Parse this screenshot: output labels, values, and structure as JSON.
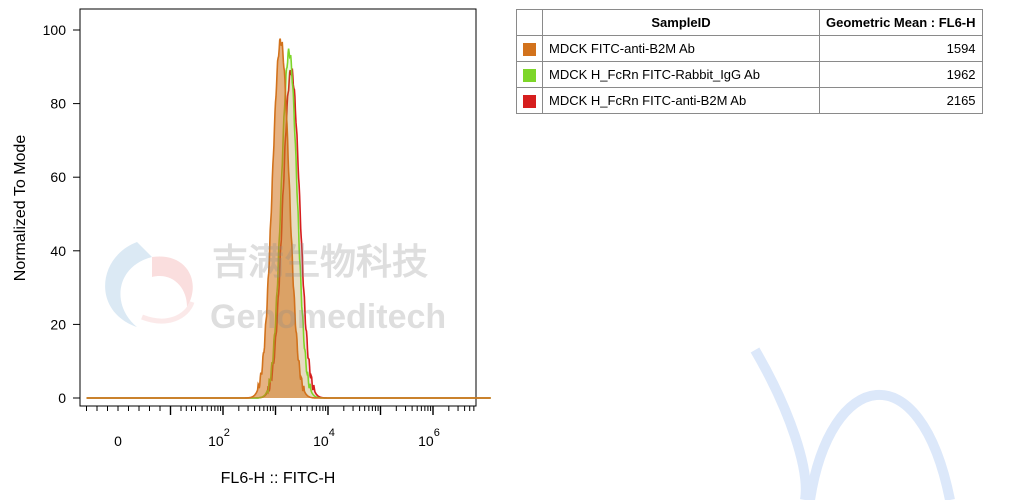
{
  "chart_data": {
    "type": "area",
    "xlabel": "FL6-H :: FITC-H",
    "ylabel": "Normalized To Mode",
    "ylim": [
      0,
      105
    ],
    "xscale": "biexponential",
    "yticks": [
      0,
      20,
      40,
      60,
      80,
      100
    ],
    "ytick_labels": [
      "0",
      "20",
      "40",
      "60",
      "80",
      "100"
    ],
    "xticks": [
      0,
      2,
      4,
      6
    ],
    "xtick_bases": [
      "0",
      "10",
      "10",
      "10"
    ],
    "xtick_exps": [
      "",
      "2",
      "4",
      "6"
    ],
    "series": [
      {
        "name": "MDCK FITC-anti-B2M Ab",
        "color": "#d2721c",
        "peak_log": 3.1,
        "peak_y": 97,
        "width": 0.16
      },
      {
        "name": "MDCK H_FcRn FITC-Rabbit_IgG Ab",
        "color": "#7dd629",
        "peak_log": 3.26,
        "peak_y": 94,
        "width": 0.15
      },
      {
        "name": "MDCK H_FcRn FITC-anti-B2M Ab",
        "color": "#d61e1e",
        "peak_log": 3.3,
        "peak_y": 89,
        "width": 0.16
      }
    ]
  },
  "table": {
    "headers": [
      "SampleID",
      "Geometric Mean : FL6-H"
    ],
    "rows": [
      {
        "sample": "MDCK FITC-anti-B2M Ab",
        "value": "1594",
        "color": "#d2721c"
      },
      {
        "sample": "MDCK H_FcRn FITC-Rabbit_IgG Ab",
        "value": "1962",
        "color": "#7dd629"
      },
      {
        "sample": "MDCK H_FcRn FITC-anti-B2M Ab",
        "value": "2165",
        "color": "#d61e1e"
      }
    ]
  },
  "watermark": {
    "cn_text": "吉满生物科技",
    "en_text": "Genomeditech"
  }
}
